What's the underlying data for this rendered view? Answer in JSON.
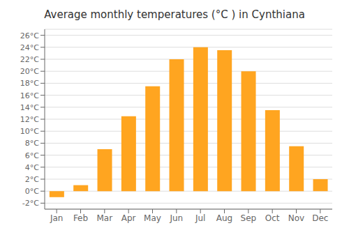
{
  "chart_data": {
    "type": "bar",
    "title": "Average monthly temperatures (°C ) in Cynthiana",
    "categories": [
      "Jan",
      "Feb",
      "Mar",
      "Apr",
      "May",
      "Jun",
      "Jul",
      "Aug",
      "Sep",
      "Oct",
      "Nov",
      "Dec"
    ],
    "values": [
      -1.0,
      1.0,
      7.0,
      12.5,
      17.5,
      22.0,
      24.0,
      23.5,
      20.0,
      13.5,
      7.5,
      2.0
    ],
    "color": "#FFA520",
    "ylim": [
      -3,
      27
    ],
    "yticks": [
      {
        "value": -2,
        "label": "-2°C"
      },
      {
        "value": 0,
        "label": "0°C"
      },
      {
        "value": 2,
        "label": "2°C"
      },
      {
        "value": 4,
        "label": "4°C"
      },
      {
        "value": 6,
        "label": "6°C"
      },
      {
        "value": 8,
        "label": "8°C"
      },
      {
        "value": 10,
        "label": "10°C"
      },
      {
        "value": 12,
        "label": "12°C"
      },
      {
        "value": 14,
        "label": "14°C"
      },
      {
        "value": 16,
        "label": "16°C"
      },
      {
        "value": 18,
        "label": "18°C"
      },
      {
        "value": 20,
        "label": "20°C"
      },
      {
        "value": 22,
        "label": "22°C"
      },
      {
        "value": 24,
        "label": "24°C"
      },
      {
        "value": 26,
        "label": "26°C"
      }
    ],
    "grid": true
  }
}
